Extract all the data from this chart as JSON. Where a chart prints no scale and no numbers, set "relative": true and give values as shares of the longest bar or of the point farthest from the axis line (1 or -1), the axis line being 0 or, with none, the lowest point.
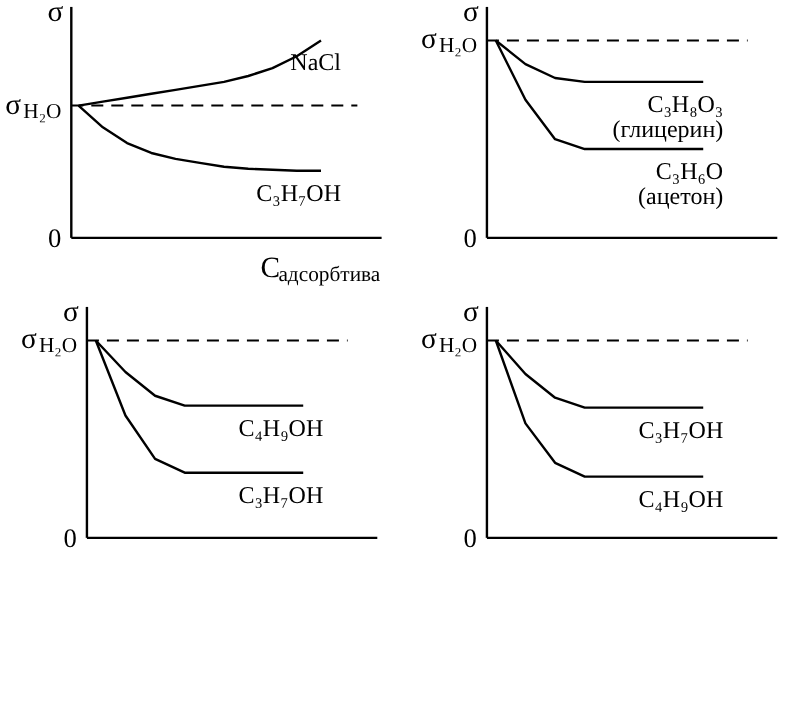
{
  "chart_data": [
    {
      "type": "line",
      "relative": true,
      "ylabel": "σ",
      "xlabel": "C$_{адсорбтива}$",
      "annotations": [
        "0"
      ],
      "categories": [
        null,
        null,
        null,
        null,
        null,
        null,
        null,
        null,
        null,
        null,
        null
      ],
      "line_style": "solid",
      "marker": "none",
      "ref_lines": [
        {
          "axis": "y",
          "value": 0.67,
          "label": "σ$_{H₂O}$",
          "line_style": "dashed",
          "color": "#000000"
        }
      ],
      "series": [
        {
          "name": "NaCl",
          "color": "#000000",
          "values": [
            0.67,
            0.69,
            0.71,
            0.73,
            0.75,
            0.77,
            0.79,
            0.82,
            0.86,
            0.92,
            1.0
          ]
        },
        {
          "name": "C₃H₇OH",
          "color": "#000000",
          "values": [
            0.67,
            0.56,
            0.48,
            0.43,
            0.4,
            0.38,
            0.36,
            0.35,
            0.345,
            0.34,
            0.34
          ]
        }
      ]
    },
    {
      "type": "line",
      "relative": true,
      "ylabel": "σ",
      "annotations": [
        "0"
      ],
      "categories": [
        null,
        null,
        null,
        null,
        null,
        null,
        null,
        null
      ],
      "line_style": "solid",
      "marker": "none",
      "ref_lines": [
        {
          "axis": "y",
          "value": 1,
          "label": "σ$_{H₂O}$",
          "line_style": "dashed",
          "color": "#000000"
        }
      ],
      "series": [
        {
          "name": "C₃H₈O₃\n(глицерин)",
          "color": "#000000",
          "values": [
            1,
            0.88,
            0.81,
            0.79,
            0.79,
            0.79,
            0.79,
            0.79
          ]
        },
        {
          "name": "C₃H₆O\n(ацетон)",
          "color": "#000000",
          "values": [
            1,
            0.7,
            0.5,
            0.45,
            0.45,
            0.45,
            0.45,
            0.45
          ]
        }
      ]
    },
    {
      "type": "line",
      "relative": true,
      "ylabel": "σ",
      "annotations": [
        "0"
      ],
      "categories": [
        null,
        null,
        null,
        null,
        null,
        null,
        null,
        null
      ],
      "line_style": "solid",
      "marker": "none",
      "ref_lines": [
        {
          "axis": "y",
          "value": 1,
          "label": "σ$_{H₂O}$",
          "line_style": "dashed",
          "color": "#000000"
        }
      ],
      "series": [
        {
          "name": "C₄H₉OH",
          "color": "#000000",
          "values": [
            1,
            0.84,
            0.72,
            0.67,
            0.67,
            0.67,
            0.67,
            0.67
          ]
        },
        {
          "name": "C₃H₇OH",
          "color": "#000000",
          "values": [
            1,
            0.62,
            0.4,
            0.33,
            0.33,
            0.33,
            0.33,
            0.33
          ]
        }
      ]
    },
    {
      "type": "line",
      "relative": true,
      "ylabel": "σ",
      "annotations": [
        "0"
      ],
      "categories": [
        null,
        null,
        null,
        null,
        null,
        null,
        null,
        null
      ],
      "line_style": "solid",
      "marker": "none",
      "ref_lines": [
        {
          "axis": "y",
          "value": 1,
          "label": "σ$_{H₂O}$",
          "line_style": "dashed",
          "color": "#000000"
        }
      ],
      "series": [
        {
          "name": "C₃H₇OH",
          "color": "#000000",
          "values": [
            1,
            0.83,
            0.71,
            0.66,
            0.66,
            0.66,
            0.66,
            0.66
          ]
        },
        {
          "name": "C₄H₉OH",
          "color": "#000000",
          "values": [
            1,
            0.58,
            0.38,
            0.31,
            0.31,
            0.31,
            0.31,
            0.31
          ]
        }
      ]
    }
  ]
}
